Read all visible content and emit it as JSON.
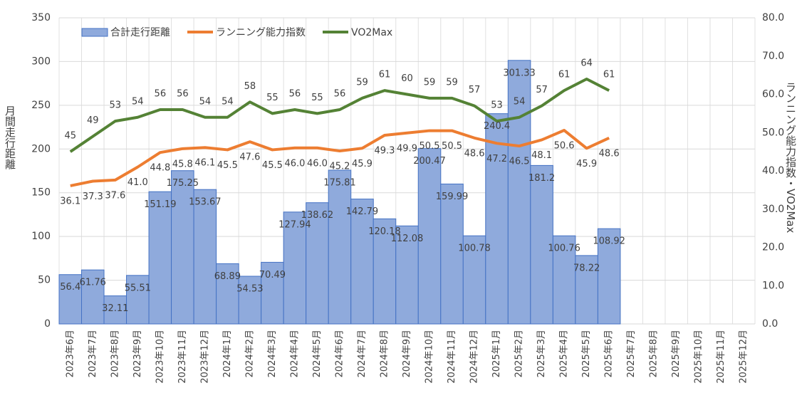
{
  "chart_data": {
    "type": "bar",
    "y_label": "月間走行距離",
    "y2_label": "ランニング能力指数・VO2Max",
    "categories": [
      "2023年6月",
      "2023年7月",
      "2023年8月",
      "2023年9月",
      "2023年10月",
      "2023年11月",
      "2023年12月",
      "2024年1月",
      "2024年2月",
      "2024年3月",
      "2024年4月",
      "2024年5月",
      "2024年6月",
      "2024年7月",
      "2024年8月",
      "2024年9月",
      "2024年10月",
      "2024年11月",
      "2024年12月",
      "2025年1月",
      "2025年2月",
      "2025年3月",
      "2025年4月",
      "2025年5月",
      "2025年6月",
      "2025年7月",
      "2025年8月",
      "2025年9月",
      "2025年10月",
      "2025年11月",
      "2025年12月"
    ],
    "series": [
      {
        "name": "合計走行距離",
        "type": "bar",
        "color": "#8faadc",
        "edge": "#4472c4",
        "values": [
          56.4,
          61.76,
          32.11,
          55.51,
          151.19,
          175.25,
          153.67,
          68.89,
          54.53,
          70.49,
          127.94,
          138.62,
          175.81,
          142.79,
          120.18,
          112.08,
          200.47,
          159.99,
          100.78,
          240.4,
          301.33,
          181.2,
          100.76,
          78.22,
          108.92,
          null,
          null,
          null,
          null,
          null,
          null
        ]
      },
      {
        "name": "ランニング能力指数",
        "type": "line",
        "axis": "y2",
        "color": "#ed7d31",
        "values": [
          36.1,
          37.3,
          37.6,
          41.0,
          44.8,
          45.8,
          46.1,
          45.5,
          47.6,
          45.5,
          46.0,
          46.0,
          45.2,
          45.9,
          49.3,
          49.9,
          50.5,
          50.5,
          48.6,
          47.2,
          46.5,
          48.1,
          50.6,
          45.9,
          48.6,
          null,
          null,
          null,
          null,
          null,
          null
        ],
        "value_labels": [
          "36.1",
          "37.3",
          "37.6",
          "41.0",
          "44.8",
          "45.8",
          "46.1",
          "45.5",
          "47.6",
          "45.5",
          "46.0",
          "46.0",
          "45.2",
          "45.9",
          "49.3",
          "49.9",
          "50.5",
          "50.5",
          "48.6",
          "47.2",
          "46.5",
          "48.1",
          "50.6",
          "45.9",
          "48.6",
          null,
          null,
          null,
          null,
          null,
          null
        ]
      },
      {
        "name": "VO2Max",
        "type": "line",
        "axis": "y2",
        "color": "#548235",
        "values": [
          45,
          49,
          53,
          54,
          56,
          56,
          54,
          54,
          58,
          55,
          56,
          55,
          56,
          59,
          61,
          60,
          59,
          59,
          57,
          53,
          54,
          57,
          61,
          64,
          61,
          null,
          null,
          null,
          null,
          null,
          null
        ]
      }
    ],
    "ylim": [
      0,
      350
    ],
    "yticks": [
      0,
      50,
      100,
      150,
      200,
      250,
      300,
      350
    ],
    "y2lim": [
      0,
      80
    ],
    "y2ticks": [
      {
        "value": 0,
        "label": "0.0"
      },
      {
        "value": 10,
        "label": "10.0"
      },
      {
        "value": 20,
        "label": "20.0"
      },
      {
        "value": 30,
        "label": "30.0"
      },
      {
        "value": 40,
        "label": "40.0"
      },
      {
        "value": 50,
        "label": "50.0"
      },
      {
        "value": 60,
        "label": "60.0"
      },
      {
        "value": 70,
        "label": "70.0"
      },
      {
        "value": 80,
        "label": "80.0"
      }
    ],
    "grid": true,
    "legend": "top-left"
  }
}
